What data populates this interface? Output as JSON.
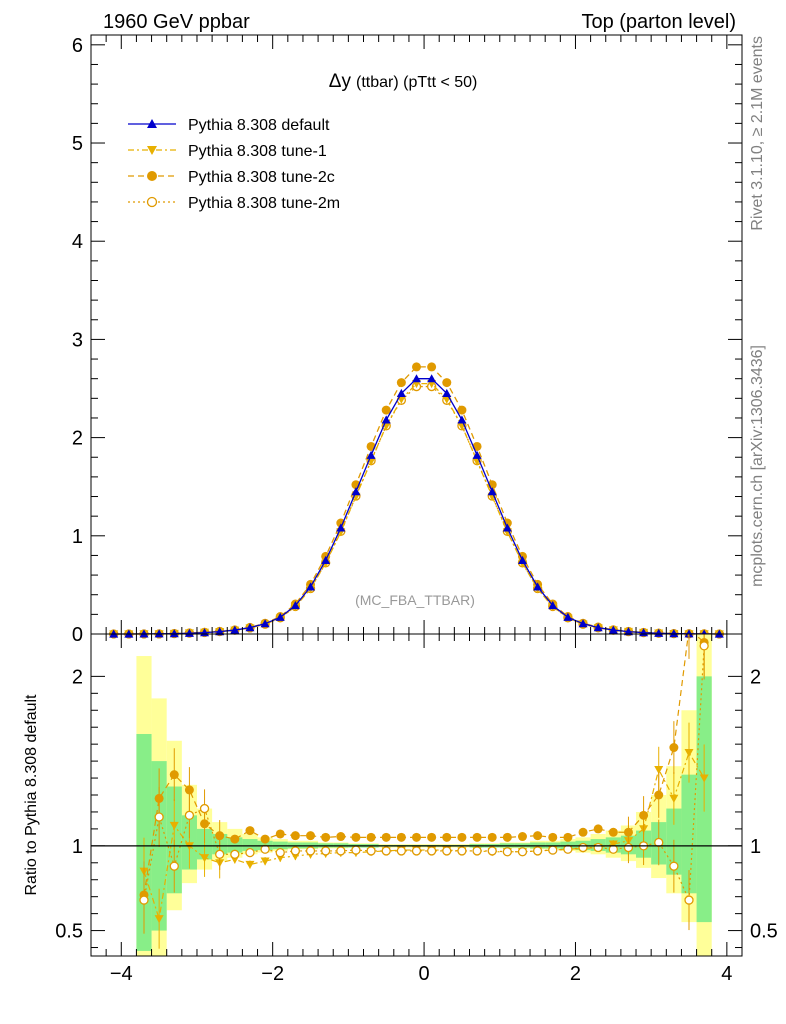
{
  "header": {
    "left": "1960 GeV ppbar",
    "right": "Top (parton level)"
  },
  "side_labels": {
    "rivet": "Rivet 3.1.10, ≥ 2.1M events",
    "mcplots": "mcplots.cern.ch [arXiv:1306.3436]"
  },
  "chart_data": [
    {
      "type": "line",
      "title_main": "Δy",
      "title_sub": "(ttbar) (pTtt < 50)",
      "annotation": "(MC_FBA_TTBAR)",
      "xlim": [
        -4.4,
        4.2
      ],
      "ylim": [
        0,
        6.1
      ],
      "yticks": [
        0,
        1,
        2,
        3,
        4,
        5,
        6
      ],
      "ytick_labels": [
        "0",
        "1",
        "2",
        "3",
        "4",
        "5",
        "6"
      ],
      "legend_placement": "top-left",
      "x": [
        -4.1,
        -3.9,
        -3.7,
        -3.5,
        -3.3,
        -3.1,
        -2.9,
        -2.7,
        -2.5,
        -2.3,
        -2.1,
        -1.9,
        -1.7,
        -1.5,
        -1.3,
        -1.1,
        -0.9,
        -0.7,
        -0.5,
        -0.3,
        -0.1,
        0.1,
        0.3,
        0.5,
        0.7,
        0.9,
        1.1,
        1.3,
        1.5,
        1.7,
        1.9,
        2.1,
        2.3,
        2.5,
        2.7,
        2.9,
        3.1,
        3.3,
        3.5,
        3.7,
        3.9
      ],
      "series": [
        {
          "name": "Pythia 8.308 default",
          "color": "#0000cc",
          "marker": "triangle-up",
          "line": "solid",
          "values": [
            0.0,
            0.0,
            0.001,
            0.002,
            0.004,
            0.008,
            0.014,
            0.024,
            0.04,
            0.065,
            0.105,
            0.17,
            0.29,
            0.48,
            0.75,
            1.08,
            1.45,
            1.82,
            2.18,
            2.45,
            2.6,
            2.6,
            2.45,
            2.18,
            1.82,
            1.45,
            1.08,
            0.75,
            0.48,
            0.29,
            0.17,
            0.105,
            0.065,
            0.04,
            0.024,
            0.014,
            0.008,
            0.004,
            0.002,
            0.001,
            0.0
          ]
        },
        {
          "name": "Pythia 8.308 tune-1",
          "color": "#e8b000",
          "marker": "triangle-down",
          "line": "dashdot",
          "values": [
            0.0,
            0.0,
            0.001,
            0.001,
            0.005,
            0.01,
            0.017,
            0.025,
            0.039,
            0.061,
            0.1,
            0.162,
            0.277,
            0.46,
            0.72,
            1.04,
            1.4,
            1.76,
            2.12,
            2.39,
            2.55,
            2.55,
            2.39,
            2.12,
            1.76,
            1.4,
            1.04,
            0.72,
            0.46,
            0.277,
            0.162,
            0.1,
            0.063,
            0.041,
            0.026,
            0.016,
            0.009,
            0.004,
            0.002,
            0.001,
            0.0
          ]
        },
        {
          "name": "Pythia 8.308 tune-2c",
          "color": "#e09a00",
          "marker": "circle",
          "line": "dashed",
          "values": [
            0.0,
            0.0,
            0.001,
            0.001,
            0.005,
            0.011,
            0.018,
            0.027,
            0.042,
            0.067,
            0.11,
            0.178,
            0.305,
            0.505,
            0.79,
            1.13,
            1.52,
            1.91,
            2.28,
            2.56,
            2.72,
            2.72,
            2.56,
            2.28,
            1.91,
            1.52,
            1.13,
            0.79,
            0.505,
            0.305,
            0.178,
            0.11,
            0.071,
            0.043,
            0.027,
            0.016,
            0.009,
            0.004,
            0.002,
            0.002,
            0.0
          ]
        },
        {
          "name": "Pythia 8.308 tune-2m",
          "color": "#e09a00",
          "marker": "open-circle",
          "line": "dotted",
          "values": [
            0.0,
            0.0,
            0.0,
            0.001,
            0.004,
            0.009,
            0.016,
            0.025,
            0.038,
            0.062,
            0.1,
            0.165,
            0.28,
            0.463,
            0.725,
            1.045,
            1.405,
            1.765,
            2.12,
            2.38,
            2.52,
            2.52,
            2.38,
            2.12,
            1.765,
            1.405,
            1.045,
            0.725,
            0.463,
            0.28,
            0.165,
            0.1,
            0.063,
            0.039,
            0.024,
            0.014,
            0.008,
            0.004,
            0.002,
            0.001,
            0.0
          ]
        }
      ]
    },
    {
      "type": "line",
      "ylabel": "Ratio to Pythia 8.308 default",
      "xlim": [
        -4.4,
        4.2
      ],
      "ylim": [
        0.35,
        2.25
      ],
      "xticks": [
        -4,
        -2,
        0,
        2,
        4
      ],
      "xtick_labels": [
        "−4",
        "−2",
        "0",
        "2",
        "4"
      ],
      "yticks": [
        0.5,
        1,
        2
      ],
      "ytick_labels": [
        "0.5",
        "1",
        "2"
      ],
      "x": [
        -3.7,
        -3.5,
        -3.3,
        -3.1,
        -2.9,
        -2.7,
        -2.5,
        -2.3,
        -2.1,
        -1.9,
        -1.7,
        -1.5,
        -1.3,
        -1.1,
        -0.9,
        -0.7,
        -0.5,
        -0.3,
        -0.1,
        0.1,
        0.3,
        0.5,
        0.7,
        0.9,
        1.1,
        1.3,
        1.5,
        1.7,
        1.9,
        2.1,
        2.3,
        2.5,
        2.7,
        2.9,
        3.1,
        3.3,
        3.5,
        3.7
      ],
      "band_yellow": [
        [
          0.35,
          2.12
        ],
        [
          0.35,
          1.87
        ],
        [
          0.62,
          1.62
        ],
        [
          0.78,
          1.36
        ],
        [
          0.86,
          1.22
        ],
        [
          0.91,
          1.14
        ],
        [
          0.93,
          1.1
        ],
        [
          0.95,
          1.07
        ],
        [
          0.96,
          1.05
        ],
        [
          0.97,
          1.04
        ],
        [
          0.98,
          1.03
        ],
        [
          0.98,
          1.03
        ],
        [
          0.985,
          1.02
        ],
        [
          0.985,
          1.02
        ],
        [
          0.99,
          1.015
        ],
        [
          0.99,
          1.015
        ],
        [
          0.99,
          1.01
        ],
        [
          0.99,
          1.01
        ],
        [
          0.99,
          1.01
        ],
        [
          0.99,
          1.01
        ],
        [
          0.99,
          1.01
        ],
        [
          0.99,
          1.01
        ],
        [
          0.99,
          1.015
        ],
        [
          0.99,
          1.015
        ],
        [
          0.985,
          1.02
        ],
        [
          0.985,
          1.02
        ],
        [
          0.98,
          1.03
        ],
        [
          0.98,
          1.03
        ],
        [
          0.97,
          1.04
        ],
        [
          0.96,
          1.05
        ],
        [
          0.95,
          1.07
        ],
        [
          0.93,
          1.09
        ],
        [
          0.91,
          1.12
        ],
        [
          0.87,
          1.2
        ],
        [
          0.81,
          1.3
        ],
        [
          0.72,
          1.47
        ],
        [
          0.55,
          1.8
        ],
        [
          0.35,
          2.25
        ]
      ],
      "band_green": [
        [
          0.38,
          1.66
        ],
        [
          0.5,
          1.5
        ],
        [
          0.72,
          1.35
        ],
        [
          0.86,
          1.18
        ],
        [
          0.92,
          1.1
        ],
        [
          0.95,
          1.07
        ],
        [
          0.96,
          1.05
        ],
        [
          0.97,
          1.04
        ],
        [
          0.975,
          1.03
        ],
        [
          0.98,
          1.025
        ],
        [
          0.985,
          1.02
        ],
        [
          0.985,
          1.02
        ],
        [
          0.99,
          1.015
        ],
        [
          0.99,
          1.015
        ],
        [
          0.99,
          1.01
        ],
        [
          0.99,
          1.01
        ],
        [
          0.995,
          1.005
        ],
        [
          0.995,
          1.005
        ],
        [
          0.995,
          1.005
        ],
        [
          0.995,
          1.005
        ],
        [
          0.995,
          1.005
        ],
        [
          0.995,
          1.005
        ],
        [
          0.99,
          1.01
        ],
        [
          0.99,
          1.01
        ],
        [
          0.99,
          1.015
        ],
        [
          0.99,
          1.015
        ],
        [
          0.985,
          1.02
        ],
        [
          0.985,
          1.02
        ],
        [
          0.98,
          1.025
        ],
        [
          0.975,
          1.03
        ],
        [
          0.97,
          1.04
        ],
        [
          0.96,
          1.05
        ],
        [
          0.95,
          1.06
        ],
        [
          0.93,
          1.09
        ],
        [
          0.89,
          1.14
        ],
        [
          0.83,
          1.22
        ],
        [
          0.72,
          1.42
        ],
        [
          0.55,
          2.0
        ]
      ],
      "series": [
        {
          "name": "Pythia 8.308 tune-1",
          "color": "#e8b000",
          "marker": "triangle-down",
          "values": [
            0.85,
            0.57,
            1.12,
            1.0,
            0.93,
            0.9,
            0.92,
            0.89,
            0.91,
            0.93,
            0.94,
            0.95,
            0.955,
            0.96,
            0.96,
            0.965,
            0.97,
            0.975,
            0.975,
            0.975,
            0.975,
            0.97,
            0.97,
            0.965,
            0.965,
            0.965,
            0.97,
            0.975,
            0.98,
            0.985,
            0.99,
            1.01,
            1.03,
            1.1,
            1.45,
            1.28,
            1.55,
            1.4
          ]
        },
        {
          "name": "Pythia 8.308 tune-2c",
          "color": "#e09a00",
          "marker": "circle",
          "values": [
            0.71,
            1.28,
            1.42,
            1.33,
            1.13,
            1.06,
            1.04,
            1.09,
            1.04,
            1.07,
            1.06,
            1.06,
            1.05,
            1.055,
            1.05,
            1.05,
            1.05,
            1.05,
            1.05,
            1.05,
            1.05,
            1.05,
            1.05,
            1.05,
            1.05,
            1.055,
            1.06,
            1.05,
            1.05,
            1.08,
            1.1,
            1.08,
            1.08,
            1.18,
            1.3,
            1.58,
            2.28,
            2.2
          ]
        },
        {
          "name": "Pythia 8.308 tune-2m",
          "color": "#e09a00",
          "marker": "open-circle",
          "values": [
            0.68,
            1.17,
            0.88,
            1.18,
            1.22,
            0.95,
            0.95,
            0.96,
            0.98,
            0.96,
            0.97,
            0.97,
            0.97,
            0.97,
            0.975,
            0.97,
            0.97,
            0.97,
            0.97,
            0.97,
            0.97,
            0.97,
            0.97,
            0.97,
            0.965,
            0.965,
            0.97,
            0.975,
            0.98,
            0.99,
            0.99,
            0.98,
            0.99,
            1.0,
            1.02,
            0.88,
            0.68,
            2.18
          ]
        }
      ],
      "reference_line": 1
    }
  ]
}
